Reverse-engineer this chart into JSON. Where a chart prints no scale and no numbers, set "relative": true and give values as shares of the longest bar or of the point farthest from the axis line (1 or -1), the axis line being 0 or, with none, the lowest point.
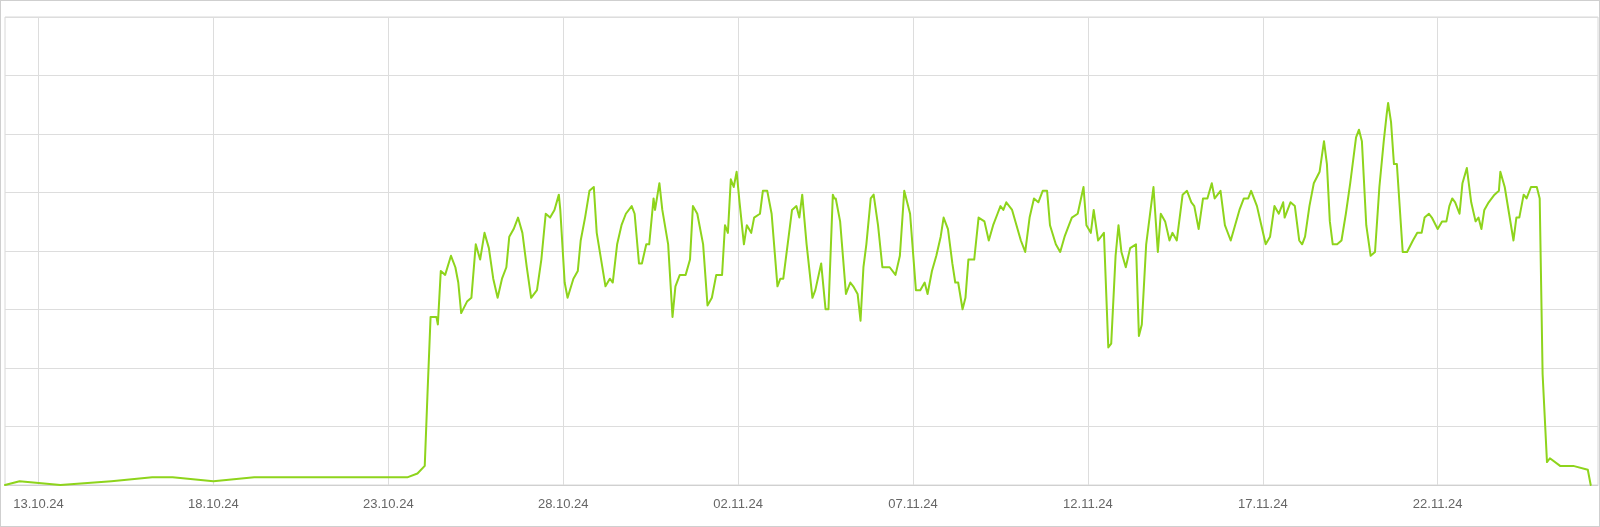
{
  "chart_data": {
    "type": "line",
    "relative": true,
    "grid": true,
    "marker": "none",
    "line_style": "solid",
    "xlim": [
      "--10-12T01:00",
      "--11-26T14:00"
    ],
    "xticks": [
      {
        "value": "--10-13",
        "label": "13.10.24"
      },
      {
        "value": "--10-18",
        "label": "18.10.24"
      },
      {
        "value": "--10-23",
        "label": "23.10.24"
      },
      {
        "value": "--10-28",
        "label": "28.10.24"
      },
      {
        "value": "--11-02",
        "label": "02.11.24"
      },
      {
        "value": "--11-07",
        "label": "07.11.24"
      },
      {
        "value": "--11-12",
        "label": "12.11.24"
      },
      {
        "value": "--11-17",
        "label": "17.11.24"
      },
      {
        "value": "--11-22",
        "label": "22.11.24"
      }
    ],
    "x": [
      "--10-12T01:00",
      "--10-12T11:00",
      "--10-13T15:00",
      "--10-15T02:00",
      "--10-16T06:00",
      "--10-16T20:00",
      "--10-18T00:00",
      "--10-19T04:00",
      "--10-20T15:00",
      "--10-21T19:00",
      "--10-22T23:00",
      "--10-23T13:00",
      "--10-23T20:00",
      "--10-24T01:00",
      "--10-24T03:00",
      "--10-24T05:00",
      "--10-24T09:00",
      "--10-24T10:00",
      "--10-24T12:00",
      "--10-24T15:00",
      "--10-24T19:00",
      "--10-24T22:00",
      "--10-25T00:00",
      "--10-25T02:00",
      "--10-25T06:00",
      "--10-25T09:00",
      "--10-25T12:00",
      "--10-25T15:00",
      "--10-25T18:00",
      "--10-25T21:00",
      "--10-26T00:00",
      "--10-26T03:00",
      "--10-26T06:00",
      "--10-26T09:00",
      "--10-26T11:00",
      "--10-26T14:00",
      "--10-26T17:00",
      "--10-26T20:00",
      "--10-26T23:00",
      "--10-27T02:00",
      "--10-27T06:00",
      "--10-27T09:00",
      "--10-27T12:00",
      "--10-27T15:00",
      "--10-27T18:00",
      "--10-27T21:00",
      "--10-27T22:00",
      "--10-28T01:00",
      "--10-28T03:00",
      "--10-28T07:00",
      "--10-28T10:00",
      "--10-28T12:00",
      "--10-28T15:00",
      "--10-28T18:00",
      "--10-28T21:00",
      "--10-28T23:00",
      "--10-29T02:00",
      "--10-29T05:00",
      "--10-29T08:00",
      "--10-29T10:00",
      "--10-29T13:00",
      "--10-29T16:00",
      "--10-29T19:00",
      "--10-29T23:00",
      "--10-30T01:00",
      "--10-30T04:00",
      "--10-30T06:00",
      "--10-30T09:00",
      "--10-30T11:00",
      "--10-30T14:00",
      "--10-30T15:00",
      "--10-30T18:00",
      "--10-30T20:00",
      "--10-31T00:00",
      "--10-31T03:00",
      "--10-31T05:00",
      "--10-31T08:00",
      "--10-31T12:00",
      "--10-31T15:00",
      "--10-31T17:00",
      "--10-31T20:00",
      "--11-01T00:00",
      "--11-01T03:00",
      "--11-01T06:00",
      "--11-01T09:00",
      "--11-01T13:00",
      "--11-01T15:00",
      "--11-01T17:00",
      "--11-01T19:00",
      "--11-01T21:00",
      "--11-01T23:00",
      "--11-02T01:00",
      "--11-02T04:00",
      "--11-02T06:00",
      "--11-02T09:00",
      "--11-02T11:00",
      "--11-02T15:00",
      "--11-02T17:00",
      "--11-02T20:00",
      "--11-02T23:00",
      "--11-03T03:00",
      "--11-03T05:00",
      "--11-03T07:00",
      "--11-03T10:00",
      "--11-03T13:00",
      "--11-03T16:00",
      "--11-03T18:00",
      "--11-03T20:00",
      "--11-03T23:00",
      "--11-04T03:00",
      "--11-04T05:00",
      "--11-04T09:00",
      "--11-04T12:00",
      "--11-04T14:00",
      "--11-04T17:00",
      "--11-04T18:00",
      "--11-04T19:00",
      "--11-04T22:00",
      "--11-05T02:00",
      "--11-05T05:00",
      "--11-05T07:00",
      "--11-05T10:00",
      "--11-05T12:00",
      "--11-05T14:00",
      "--11-05T16:00",
      "--11-05T19:00",
      "--11-05T21:00",
      "--11-06T00:00",
      "--11-06T03:00",
      "--11-06T06:00",
      "--11-06T08:00",
      "--11-06T12:00",
      "--11-06T15:00",
      "--11-06T18:00",
      "--11-06T20:00",
      "--11-06T22:00",
      "--11-07T02:00",
      "--11-07T05:00",
      "--11-07T08:00",
      "--11-07T10:00",
      "--11-07T13:00",
      "--11-07T16:00",
      "--11-07T19:00",
      "--11-07T21:00",
      "--11-08T00:00",
      "--11-08T03:00",
      "--11-08T05:00",
      "--11-08T07:00",
      "--11-08T10:00",
      "--11-08T12:00",
      "--11-08T14:00",
      "--11-08T18:00",
      "--11-08T21:00",
      "--11-09T01:00",
      "--11-09T04:00",
      "--11-09T07:00",
      "--11-09T10:00",
      "--11-09T12:00",
      "--11-09T14:00",
      "--11-09T16:00",
      "--11-09T20:00",
      "--11-09T23:00",
      "--11-10T02:00",
      "--11-10T05:00",
      "--11-10T08:00",
      "--11-10T11:00",
      "--11-10T14:00",
      "--11-10T17:00",
      "--11-10T20:00",
      "--11-10T22:00",
      "--11-11T02:00",
      "--11-11T05:00",
      "--11-11T08:00",
      "--11-11T11:00",
      "--11-11T13:00",
      "--11-11T17:00",
      "--11-11T21:00",
      "--11-11T23:00",
      "--11-12T02:00",
      "--11-12T04:00",
      "--11-12T07:00",
      "--11-12T11:00",
      "--11-12T14:00",
      "--11-12T16:00",
      "--11-12T19:00",
      "--11-12T21:00",
      "--11-12T23:00",
      "--11-13T02:00",
      "--11-13T05:00",
      "--11-13T09:00",
      "--11-13T11:00",
      "--11-13T13:00",
      "--11-13T16:00",
      "--11-13T19:00",
      "--11-13T21:00",
      "--11-14T00:00",
      "--11-14T02:00",
      "--11-14T05:00",
      "--11-14T08:00",
      "--11-14T10:00",
      "--11-14T13:00",
      "--11-14T17:00",
      "--11-14T20:00",
      "--11-14T23:00",
      "--11-15T01:00",
      "--11-15T04:00",
      "--11-15T07:00",
      "--11-15T10:00",
      "--11-15T13:00",
      "--11-15T15:00",
      "--11-15T19:00",
      "--11-15T22:00",
      "--11-16T02:00",
      "--11-16T05:00",
      "--11-16T08:00",
      "--11-16T11:00",
      "--11-16T14:00",
      "--11-16T16:00",
      "--11-16T20:00",
      "--11-16T23:00",
      "--11-17T02:00",
      "--11-17T05:00",
      "--11-17T08:00",
      "--11-17T11:00",
      "--11-17T14:00",
      "--11-17T15:00",
      "--11-17T19:00",
      "--11-17T22:00",
      "--11-18T01:00",
      "--11-18T03:00",
      "--11-18T05:00",
      "--11-18T08:00",
      "--11-18T11:00",
      "--11-18T15:00",
      "--11-18T18:00",
      "--11-18T20:00",
      "--11-18T22:00",
      "--11-19T00:00",
      "--11-19T03:00",
      "--11-19T06:00",
      "--11-19T09:00",
      "--11-19T12:00",
      "--11-19T16:00",
      "--11-19T18:00",
      "--11-19T20:00",
      "--11-19T23:00",
      "--11-20T02:00",
      "--11-20T05:00",
      "--11-20T08:00",
      "--11-20T11:00",
      "--11-20T13:00",
      "--11-20T14:00",
      "--11-20T16:00",
      "--11-20T18:00",
      "--11-20T20:00",
      "--11-21T00:00",
      "--11-21T03:00",
      "--11-21T07:00",
      "--11-21T10:00",
      "--11-21T13:00",
      "--11-21T15:00",
      "--11-21T18:00",
      "--11-21T20:00",
      "--11-22T00:00",
      "--11-22T03:00",
      "--11-22T06:00",
      "--11-22T08:00",
      "--11-22T10:00",
      "--11-22T12:00",
      "--11-22T15:00",
      "--11-22T17:00",
      "--11-22T20:00",
      "--11-22T23:00",
      "--11-23T02:00",
      "--11-23T04:00",
      "--11-23T06:00",
      "--11-23T08:00",
      "--11-23T11:00",
      "--11-23T15:00",
      "--11-23T18:00",
      "--11-23T19:00",
      "--11-23T22:00",
      "--11-24T01:00",
      "--11-24T04:00",
      "--11-24T06:00",
      "--11-24T08:00",
      "--11-24T11:00",
      "--11-24T13:00",
      "--11-24T16:00",
      "--11-24T20:00",
      "--11-24T22:00",
      "--11-25T00:00",
      "--11-25T03:00",
      "--11-25T05:00",
      "--11-25T12:00",
      "--11-25T21:00",
      "--11-26T07:00",
      "--11-26T09:00"
    ],
    "series": [
      {
        "color": "#8ed41c",
        "values": [
          0.0,
          0.01,
          0.0,
          0.01,
          0.02,
          0.02,
          0.01,
          0.02,
          0.02,
          0.02,
          0.02,
          0.02,
          0.03,
          0.05,
          0.25,
          0.44,
          0.44,
          0.42,
          0.56,
          0.55,
          0.6,
          0.57,
          0.53,
          0.45,
          0.48,
          0.49,
          0.63,
          0.59,
          0.66,
          0.62,
          0.54,
          0.49,
          0.54,
          0.57,
          0.65,
          0.67,
          0.7,
          0.66,
          0.57,
          0.49,
          0.51,
          0.59,
          0.71,
          0.7,
          0.72,
          0.76,
          0.72,
          0.53,
          0.49,
          0.54,
          0.56,
          0.64,
          0.7,
          0.77,
          0.78,
          0.66,
          0.59,
          0.52,
          0.54,
          0.53,
          0.63,
          0.68,
          0.71,
          0.73,
          0.71,
          0.58,
          0.58,
          0.63,
          0.63,
          0.75,
          0.72,
          0.79,
          0.72,
          0.63,
          0.44,
          0.52,
          0.55,
          0.55,
          0.59,
          0.73,
          0.71,
          0.63,
          0.47,
          0.49,
          0.55,
          0.55,
          0.68,
          0.66,
          0.8,
          0.78,
          0.82,
          0.74,
          0.63,
          0.68,
          0.66,
          0.7,
          0.71,
          0.77,
          0.77,
          0.71,
          0.52,
          0.54,
          0.54,
          0.63,
          0.72,
          0.73,
          0.7,
          0.76,
          0.63,
          0.49,
          0.51,
          0.58,
          0.46,
          0.46,
          0.76,
          0.75,
          0.75,
          0.69,
          0.5,
          0.53,
          0.52,
          0.5,
          0.43,
          0.57,
          0.63,
          0.75,
          0.76,
          0.68,
          0.57,
          0.57,
          0.57,
          0.55,
          0.6,
          0.77,
          0.74,
          0.71,
          0.51,
          0.51,
          0.53,
          0.5,
          0.56,
          0.6,
          0.65,
          0.7,
          0.67,
          0.58,
          0.53,
          0.53,
          0.46,
          0.49,
          0.59,
          0.59,
          0.7,
          0.69,
          0.64,
          0.68,
          0.71,
          0.73,
          0.72,
          0.74,
          0.72,
          0.68,
          0.64,
          0.61,
          0.7,
          0.75,
          0.74,
          0.77,
          0.77,
          0.68,
          0.63,
          0.61,
          0.65,
          0.68,
          0.7,
          0.71,
          0.78,
          0.68,
          0.66,
          0.72,
          0.64,
          0.66,
          0.36,
          0.37,
          0.6,
          0.68,
          0.61,
          0.57,
          0.62,
          0.63,
          0.39,
          0.42,
          0.63,
          0.72,
          0.78,
          0.61,
          0.71,
          0.69,
          0.64,
          0.66,
          0.64,
          0.76,
          0.77,
          0.74,
          0.73,
          0.67,
          0.75,
          0.75,
          0.79,
          0.75,
          0.77,
          0.68,
          0.64,
          0.68,
          0.72,
          0.75,
          0.75,
          0.77,
          0.73,
          0.68,
          0.63,
          0.65,
          0.73,
          0.71,
          0.74,
          0.7,
          0.74,
          0.73,
          0.64,
          0.63,
          0.65,
          0.73,
          0.79,
          0.82,
          0.9,
          0.84,
          0.69,
          0.63,
          0.63,
          0.64,
          0.71,
          0.79,
          0.91,
          0.93,
          0.9,
          0.68,
          0.6,
          0.61,
          0.78,
          0.9,
          0.97,
          1.0,
          0.95,
          0.84,
          0.84,
          0.61,
          0.61,
          0.64,
          0.66,
          0.66,
          0.7,
          0.71,
          0.7,
          0.67,
          0.69,
          0.69,
          0.73,
          0.75,
          0.74,
          0.71,
          0.79,
          0.83,
          0.74,
          0.69,
          0.7,
          0.67,
          0.72,
          0.74,
          0.76,
          0.77,
          0.82,
          0.78,
          0.71,
          0.64,
          0.7,
          0.7,
          0.76,
          0.75,
          0.78,
          0.78,
          0.75,
          0.29,
          0.06,
          0.07,
          0.05,
          0.05,
          0.04,
          0.0
        ]
      }
    ]
  }
}
